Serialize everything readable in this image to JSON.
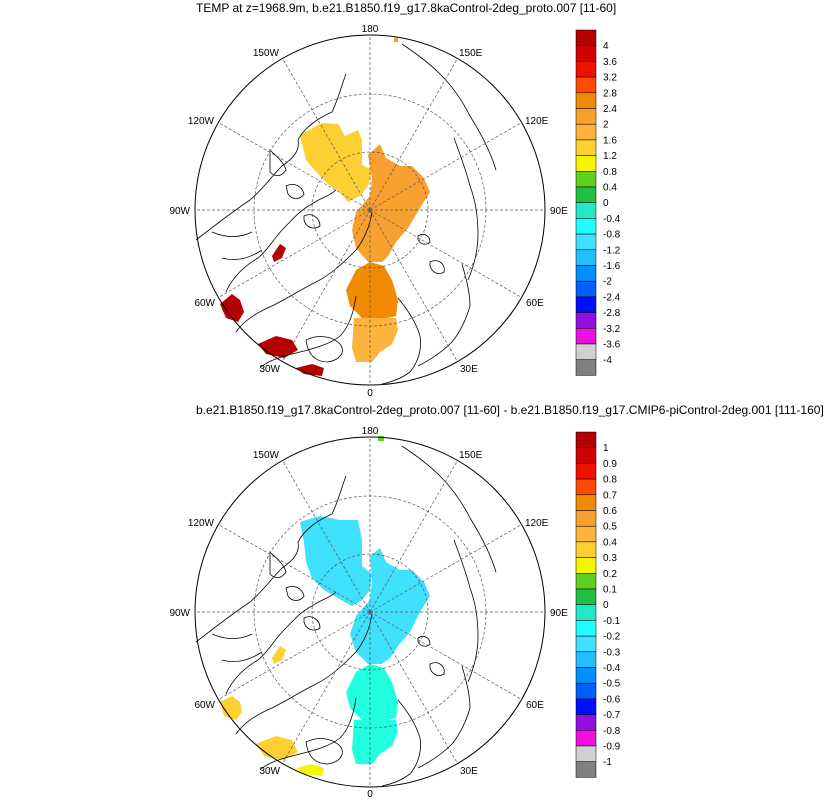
{
  "panels": [
    {
      "title": "TEMP at z=1968.9m, b.e21.B1850.f19_g17.8kaControl-2deg_proto.007 [11-60]",
      "lon_labels": {
        "l180": "180",
        "l150e": "150E",
        "l120e": "120E",
        "l90e": "90E",
        "l60e": "60E",
        "l30e": "30E",
        "l0": "0",
        "l30w": "30W",
        "l60w": "60W",
        "l90w": "90W",
        "l120w": "120W",
        "l150w": "150W"
      },
      "colorbar_labels": [
        "4",
        "3.6",
        "3.2",
        "2.8",
        "2.4",
        "2",
        "1.6",
        "1.2",
        "0.8",
        "0.4",
        "0",
        "-0.4",
        "-0.8",
        "-1.2",
        "-1.6",
        "-2",
        "-2.4",
        "-2.8",
        "-3.2",
        "-3.6",
        "-4"
      ]
    },
    {
      "title": "b.e21.B1850.f19_g17.8kaControl-2deg_proto.007 [11-60] - b.e21.B1850.f19_g17.CMIP6-piControl-2deg.001 [111-160]",
      "lon_labels": {
        "l180": "180",
        "l150e": "150E",
        "l120e": "120E",
        "l90e": "90E",
        "l60e": "60E",
        "l30e": "30E",
        "l0": "0",
        "l30w": "30W",
        "l60w": "60W",
        "l90w": "90W",
        "l120w": "120W",
        "l150w": "150W"
      },
      "colorbar_labels": [
        "1",
        "0.9",
        "0.8",
        "0.7",
        "0.6",
        "0.5",
        "0.4",
        "0.3",
        "0.2",
        "0.1",
        "0",
        "-0.1",
        "-0.2",
        "-0.3",
        "-0.4",
        "-0.5",
        "-0.6",
        "-0.7",
        "-0.8",
        "-0.9",
        "-1"
      ]
    }
  ],
  "colors": {
    "palette": [
      "#b40000",
      "#d00000",
      "#f01000",
      "#ff4a00",
      "#f08a00",
      "#f7a030",
      "#fdb33c",
      "#fcd030",
      "#f5f500",
      "#60d020",
      "#20c040",
      "#20e8c8",
      "#20ffff",
      "#40e0ff",
      "#20c0ff",
      "#0090ff",
      "#0060ff",
      "#0010ff",
      "#9010e0",
      "#ee10e0",
      "#d0d0d0",
      "#808080"
    ],
    "land": "#000000",
    "grid": "#555555",
    "panel1_fill_main": "#fdb33c",
    "panel1_fill_warm": "#f7a030",
    "panel1_fill_hot": "#f08a00",
    "panel1_fill_yellow": "#fcd030",
    "panel1_fill_red": "#b40000",
    "panel2_fill_cyan": "#40e0ff",
    "panel2_fill_teal": "#20ffe0",
    "panel2_fill_yellow": "#fcd030",
    "panel2_fill_green": "#60d020"
  }
}
